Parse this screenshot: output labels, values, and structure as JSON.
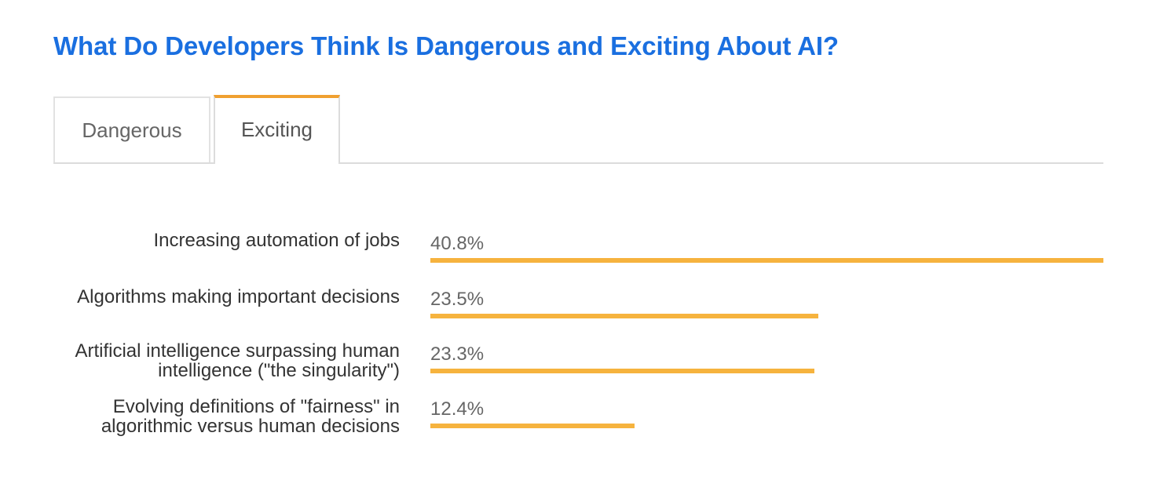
{
  "title": "What Do Developers Think Is Dangerous and Exciting About AI?",
  "tabs": [
    {
      "label": "Dangerous",
      "active": false
    },
    {
      "label": "Exciting",
      "active": true
    }
  ],
  "colors": {
    "title": "#1a6fe0",
    "bar": "#f6b33e",
    "active_tab_accent": "#f0a030"
  },
  "chart_data": {
    "type": "bar",
    "orientation": "horizontal",
    "categories": [
      "Increasing automation of jobs",
      "Algorithms making important decisions",
      "Artificial intelligence surpassing human intelligence (\"the singularity\")",
      "Evolving definitions of \"fairness\" in algorithmic versus human decisions"
    ],
    "values": [
      40.8,
      23.5,
      23.3,
      12.4
    ],
    "value_labels": [
      "40.8%",
      "23.5%",
      "23.3%",
      "12.4%"
    ],
    "xlim": [
      0,
      40.8
    ],
    "grid": false
  }
}
